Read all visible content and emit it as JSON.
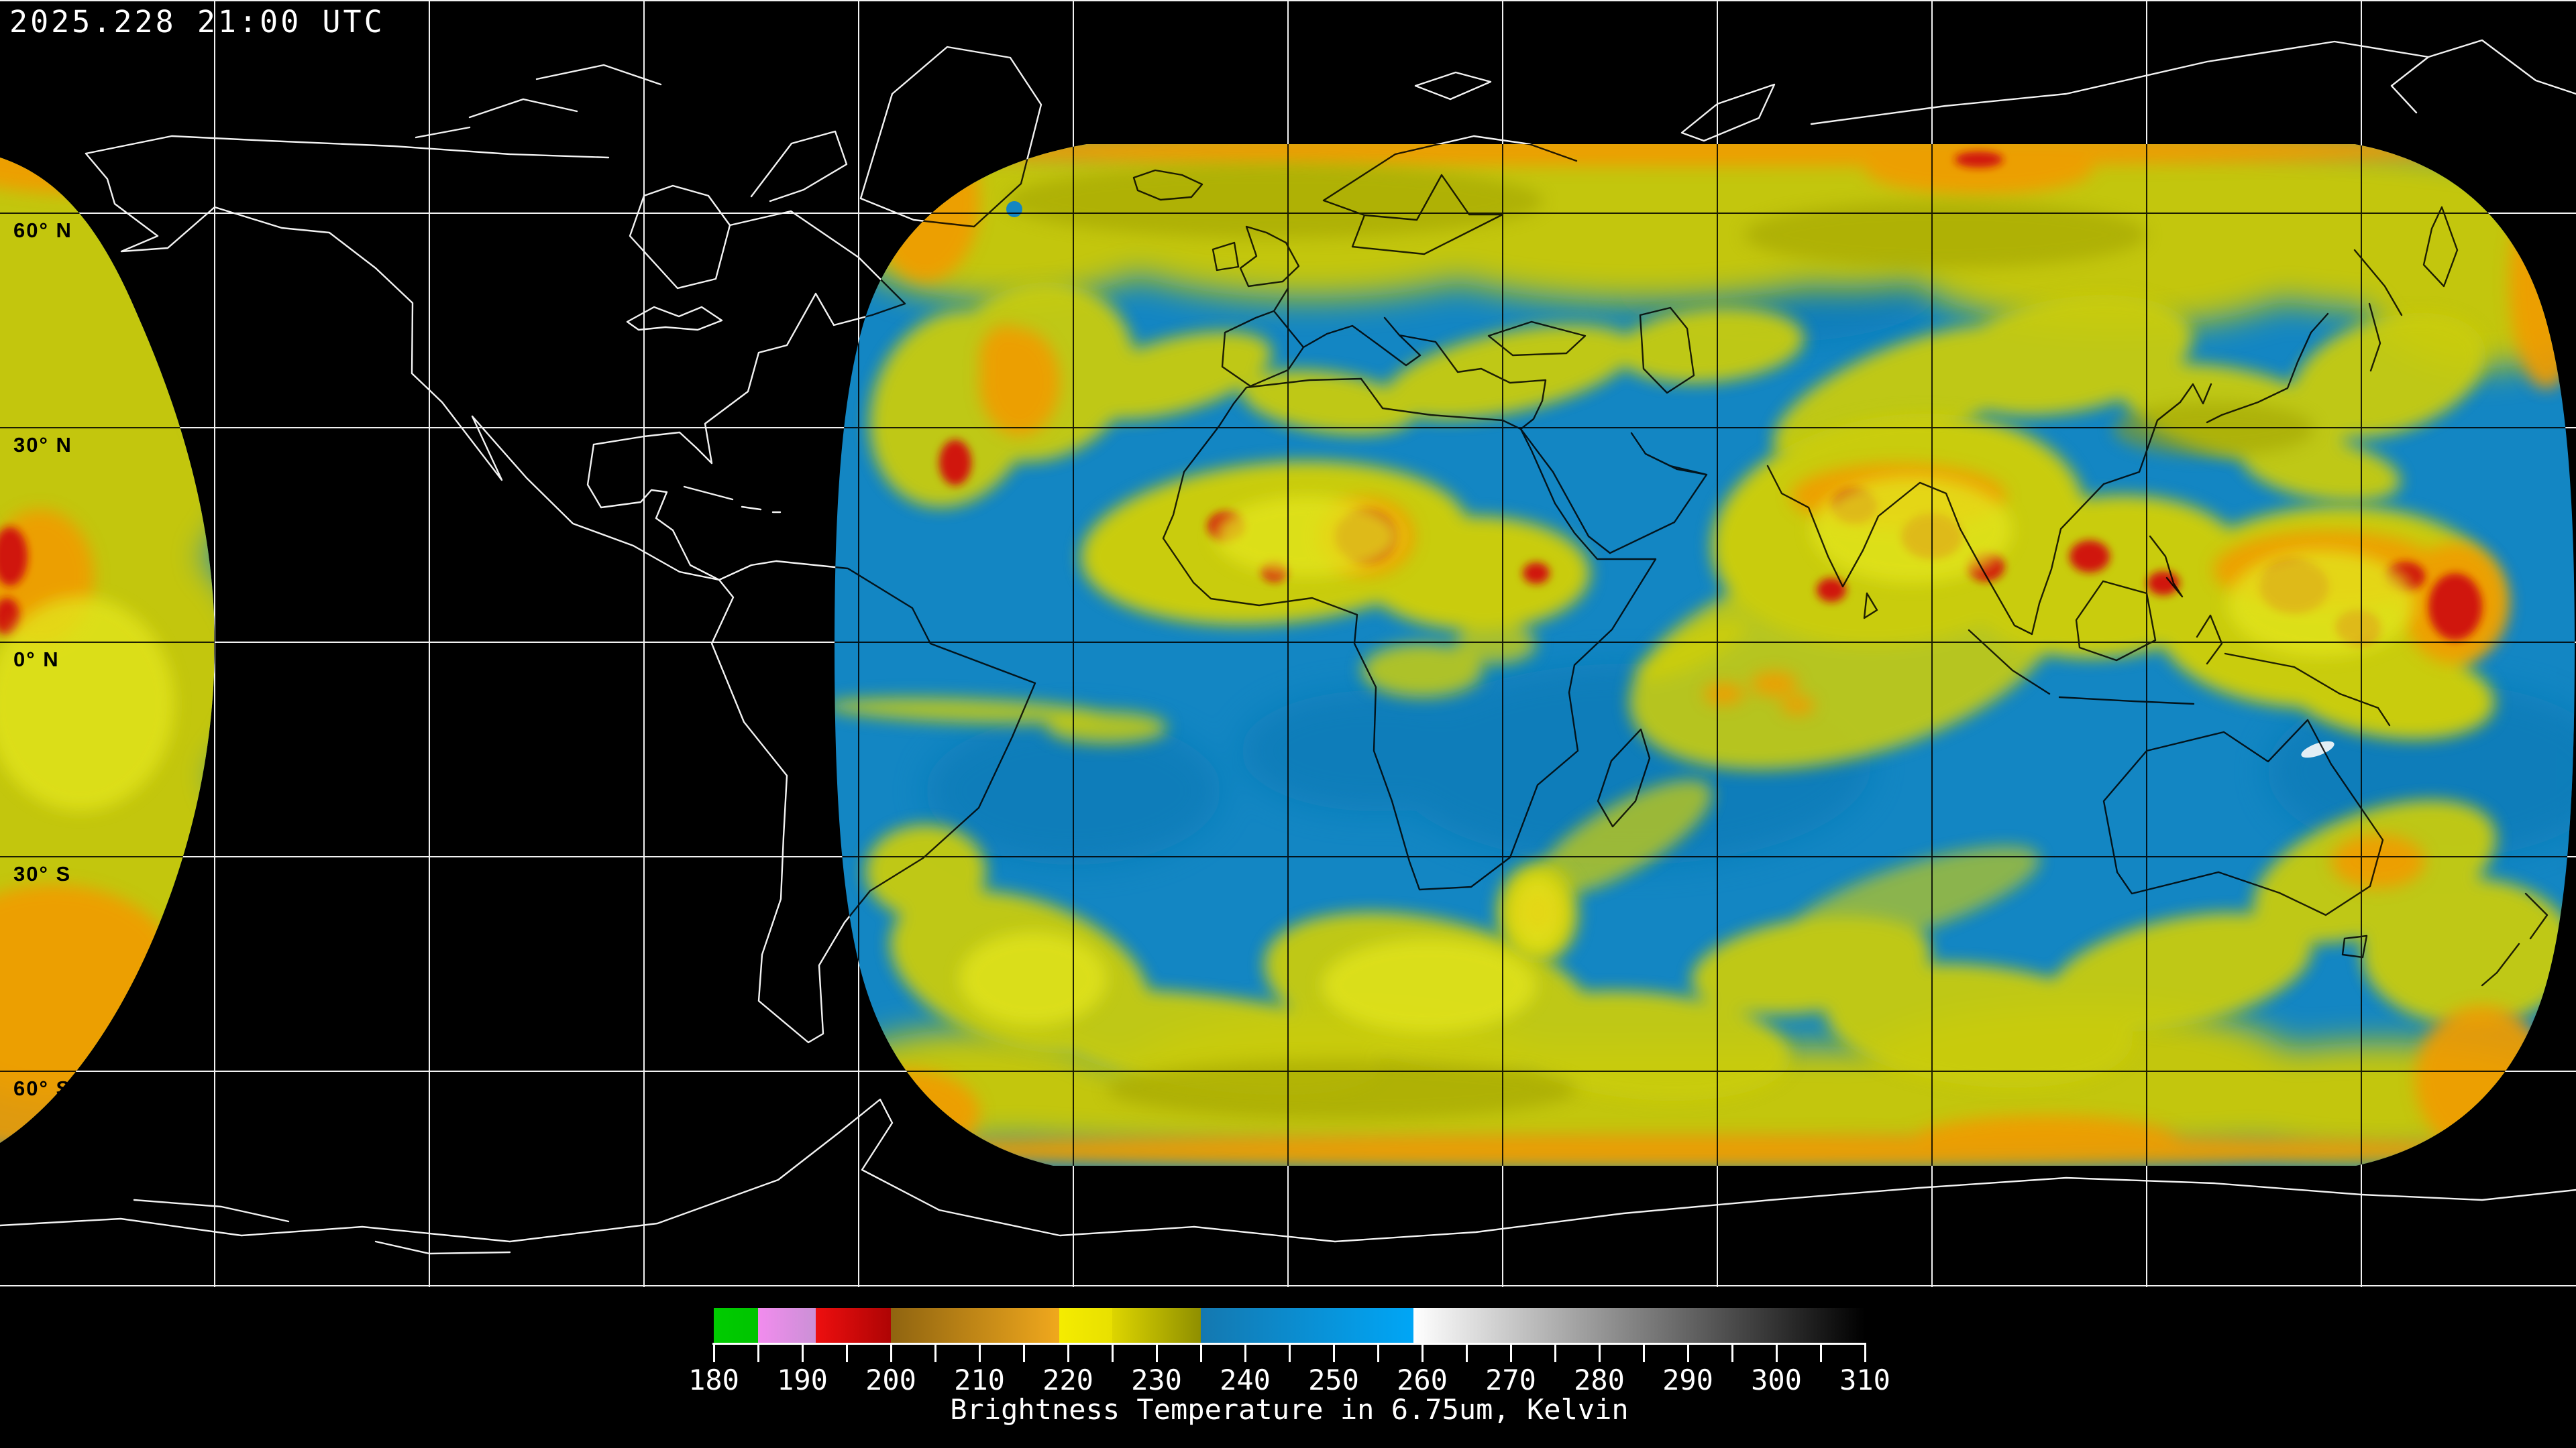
{
  "header": {
    "timestamp": "2025.228 21:00 UTC"
  },
  "map": {
    "latitude_labels": [
      "60° N",
      "30° N",
      "0° N",
      "30° S",
      "60° S"
    ],
    "background_color": "#000000",
    "graticule_color_over_void": "#ffffff",
    "graticule_color_over_data": "#000000",
    "coastline_color_over_void": "#ffffff",
    "coastline_color_over_data": "#000000",
    "data_palette": {
      "clear_blue": "#1386c3",
      "moist_yellow": "#c3c60e",
      "bright_yellow": "#e2e41c",
      "cold_orange": "#f09c02",
      "coldest_red": "#d01407",
      "warm_white_fleck": "#eef4f8"
    }
  },
  "legend": {
    "title": "Brightness Temperature in 6.75um, Kelvin",
    "range_start": 180,
    "range_end": 310,
    "major_tick_step": 10,
    "minor_tick_step": 5,
    "tick_labels": [
      "180",
      "190",
      "200",
      "210",
      "220",
      "230",
      "240",
      "250",
      "260",
      "270",
      "280",
      "290",
      "300",
      "310"
    ],
    "segments": [
      {
        "from": 180,
        "to": 185,
        "color_start": "#00cc00",
        "color_end": "#00c400"
      },
      {
        "from": 185,
        "to": 191.5,
        "color_start": "#f28cee",
        "color_end": "#cb90d6"
      },
      {
        "from": 191.5,
        "to": 200,
        "color_start": "#ee0f0f",
        "color_end": "#ae0404"
      },
      {
        "from": 200,
        "to": 219,
        "color_start": "#8f6410",
        "color_end": "#f0a81d"
      },
      {
        "from": 219,
        "to": 225,
        "color_start": "#f5ec00",
        "color_end": "#e8e000"
      },
      {
        "from": 225,
        "to": 235,
        "color_start": "#ddd500",
        "color_end": "#8f8f00"
      },
      {
        "from": 235,
        "to": 259,
        "color_start": "#1478b0",
        "color_end": "#00a6f6"
      },
      {
        "from": 259,
        "to": 310,
        "color_start": "#ffffff",
        "color_end": "#000000"
      }
    ]
  }
}
